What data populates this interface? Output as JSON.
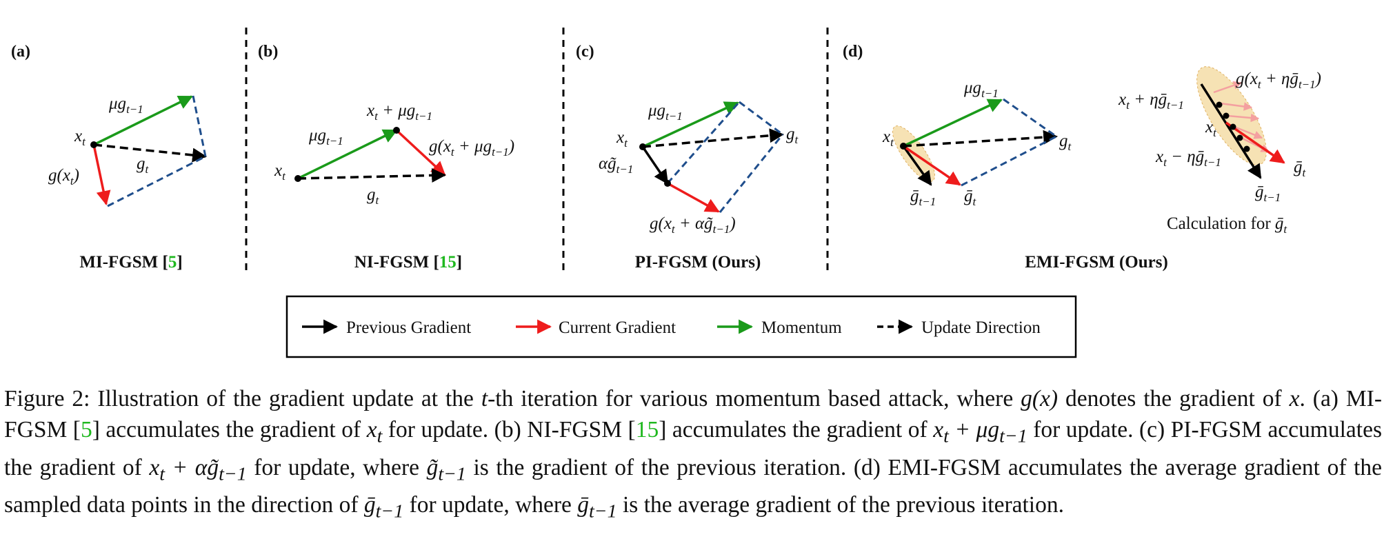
{
  "panels": [
    {
      "letter": "(a)",
      "method": "MI-FGSM",
      "ref": "5",
      "suffix": ""
    },
    {
      "letter": "(b)",
      "method": "NI-FGSM",
      "ref": "15",
      "suffix": ""
    },
    {
      "letter": "(c)",
      "method": "PI-FGSM (Ours)",
      "ref": "",
      "suffix": ""
    },
    {
      "letter": "(d)",
      "method": "EMI-FGSM (Ours)",
      "ref": "",
      "suffix": ""
    }
  ],
  "labels": {
    "a_xt": "x",
    "a_xt_sub": "t",
    "a_mom": "μg",
    "a_mom_sub": "t−1",
    "a_grad": "g(x",
    "a_grad_sub": "t",
    "a_grad_close": ")",
    "a_gt": "g",
    "a_gt_sub": "t",
    "b_xt": "x",
    "b_xt_sub": "t",
    "b_mom": "μg",
    "b_mom_sub": "t−1",
    "b_point": "x",
    "b_point_sub": "t",
    "b_point_plus": " + μg",
    "b_point_sub2": "t−1",
    "b_grad": "g(x",
    "b_grad_sub": "t",
    "b_grad_plus": " + μg",
    "b_grad_sub2": "t−1",
    "b_grad_close": ")",
    "b_gt": "g",
    "b_gt_sub": "t",
    "c_xt": "x",
    "c_xt_sub": "t",
    "c_mom": "μg",
    "c_mom_sub": "t−1",
    "c_prev": "αg̃",
    "c_prev_sub": "t−1",
    "c_gt": "g",
    "c_gt_sub": "t",
    "c_grad": "g(x",
    "c_grad_sub": "t",
    "c_grad_plus": " + αg̃",
    "c_grad_sub2": "t−1",
    "c_grad_close": ")",
    "d_xt": "x",
    "d_xt_sub": "t",
    "d_mom": "μg",
    "d_mom_sub": "t−1",
    "d_gt": "g",
    "d_gt_sub": "t",
    "d_prev": "ḡ",
    "d_prev_sub": "t−1",
    "d_cur": "ḡ",
    "d_cur_sub": "t",
    "d_top": "g(x",
    "d_top_sub": "t",
    "d_top_plus": " + ηḡ",
    "d_top_sub2": "t−1",
    "d_top_close": ")",
    "d_plus": "x",
    "d_plus_sub": "t",
    "d_plus_rest": " + ηḡ",
    "d_plus_sub2": "t−1",
    "d_mid": "x",
    "d_mid_sub": "t",
    "d_minus": "x",
    "d_minus_sub": "t",
    "d_minus_rest": " − ηḡ",
    "d_minus_sub2": "t−1",
    "d_zoom_cur": "ḡ",
    "d_zoom_cur_sub": "t",
    "d_zoom_prev": "ḡ",
    "d_zoom_prev_sub": "t−1",
    "d_calc": "Calculation for ",
    "d_calc_sym": "ḡ",
    "d_calc_sub": "t"
  },
  "legend": {
    "previous": "Previous Gradient",
    "current": "Current Gradient",
    "momentum": "Momentum",
    "update": "Update Direction"
  },
  "colors": {
    "previous": "#000000",
    "current": "#ee1c1c",
    "momentum": "#1a9a1a",
    "update_direction": "#000000",
    "parallelogram": "#1f4e8c",
    "citation": "#1fb81f",
    "sample_ellipse": "#f6e2b4",
    "sample_arrows": "#f4a0a0"
  },
  "caption": {
    "p1": "Figure 2: Illustration of the gradient update at the ",
    "t": "t",
    "p2": "-th iteration for various momentum based attack, where ",
    "gx": "g(x)",
    "p3": " denotes the gradient of ",
    "x": "x",
    "p4": ". (a) MI-FGSM [",
    "r5": "5",
    "p5": "] accumulates the gradient of ",
    "xt": "x",
    "xt_sub": "t",
    "p6": " for update. (b) NI-FGSM [",
    "r15": "15",
    "p7": "] accumulates the gradient of ",
    "ni_expr": "x",
    "ni_sub": "t",
    "ni_rest": " + μg",
    "ni_sub2": "t−1",
    "p8": " for update. (c) PI-FGSM accumulates the gradient of ",
    "pi_expr": "x",
    "pi_sub": "t",
    "pi_rest": " + αg̃",
    "pi_sub2": "t−1",
    "p9": " for update, where ",
    "gt_tilde": "g̃",
    "gt_tilde_sub": "t−1",
    "p10": " is the gradient of the previous iteration. (d) EMI-FGSM accumulates the average gradient of the sampled data points in the direction of ",
    "gbar": "ḡ",
    "gbar_sub": "t−1",
    "p11": " for update, where ",
    "gbar2": "ḡ",
    "gbar2_sub": "t−1",
    "p12": " is the average gradient of the previous iteration."
  }
}
